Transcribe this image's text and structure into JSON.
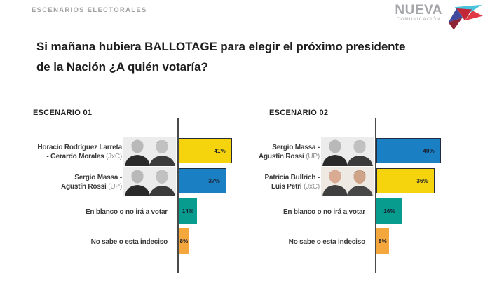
{
  "header": {
    "report_title": "ESCENARIOS ELECTORALES",
    "logo": {
      "brand": "NUEVA",
      "brand_sub": "COMUNICACIÓN",
      "icon": "pinwheel-logo-icon",
      "icon_colors": {
        "cyan": "#4cc3dc",
        "indigo": "#41499e",
        "maroon": "#8c2435",
        "red": "#c22737",
        "bright_red": "#e23a44"
      }
    }
  },
  "question": {
    "text": "Si mañana hubiera BALLOTAGE para elegir el próximo presidente de la Nación ¿A quién votaría?"
  },
  "palette": {
    "yellow": "#f6d40d",
    "blue": "#1b7fc4",
    "teal": "#089c8e",
    "orange": "#f3a73d",
    "highlight_border": "#2b2b36",
    "axis": "#4a4a4a"
  },
  "chart_data": [
    {
      "type": "bar",
      "orientation": "horizontal",
      "title": "ESCENARIO 01",
      "unit": "%",
      "value_labels_position": "inside-end",
      "value_axis_visible": false,
      "grid": false,
      "categories": [
        "Horacio Rodríguez Larreta - Gerardo Morales (JxC)",
        "Sergio Massa - Agustín Rossi (UP)",
        "En blanco o no irá a votar",
        "No sabe o esta indeciso"
      ],
      "values": [
        41,
        37,
        14,
        8
      ],
      "rows": [
        {
          "name": "Horacio Rodríguez Larreta\n- Gerardo Morales",
          "party": "(JxC)",
          "value": 41,
          "pct": "41%",
          "color": "#f6d40d",
          "border_color": "#2b2b36",
          "photo": "larreta-morales",
          "photo_style": "bw"
        },
        {
          "name": "Sergio Massa -\nAgustín Rossi",
          "party": "(UP)",
          "value": 37,
          "pct": "37%",
          "color": "#1b7fc4",
          "border_color": "#202c42",
          "photo": "massa-rossi",
          "photo_style": "bw"
        },
        {
          "name": "En blanco o no irá a votar",
          "party": "",
          "value": 14,
          "pct": "14%",
          "color": "#089c8e",
          "border_color": null
        },
        {
          "name": "No sabe o esta indeciso",
          "party": "",
          "value": 8,
          "pct": "8%",
          "color": "#f3a73d",
          "border_color": null
        }
      ]
    },
    {
      "type": "bar",
      "orientation": "horizontal",
      "title": "ESCENARIO 02",
      "unit": "%",
      "value_labels_position": "inside-end",
      "value_axis_visible": false,
      "grid": false,
      "categories": [
        "Sergio Massa - Agustín Rossi (UP)",
        "Patricia Bullrich - Luis Petri (JxC)",
        "En blanco o no irá a votar",
        "No sabe o esta indeciso"
      ],
      "values": [
        40,
        36,
        16,
        8
      ],
      "rows": [
        {
          "name": "Sergio Massa -\nAgustín Rossi",
          "party": "(UP)",
          "value": 40,
          "pct": "40%",
          "color": "#1b7fc4",
          "border_color": "#202c42",
          "photo": "massa-rossi",
          "photo_style": "bw"
        },
        {
          "name": "Patricia Bullrich -\nLuis Petri",
          "party": "(JxC)",
          "value": 36,
          "pct": "36%",
          "color": "#f6d40d",
          "border_color": "#2b2b36",
          "photo": "bullrich-petri",
          "photo_style": "color"
        },
        {
          "name": "En blanco o no irá a votar",
          "party": "",
          "value": 16,
          "pct": "16%",
          "color": "#089c8e",
          "border_color": null
        },
        {
          "name": "No sabe o esta indeciso",
          "party": "",
          "value": 8,
          "pct": "8%",
          "color": "#f3a73d",
          "border_color": null
        }
      ]
    }
  ]
}
